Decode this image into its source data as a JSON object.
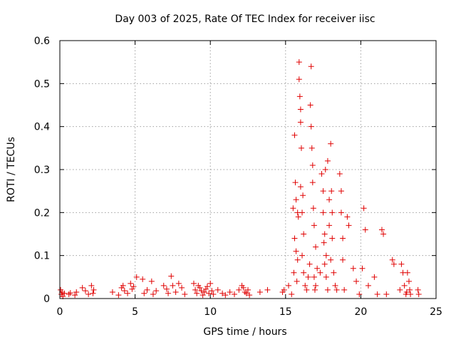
{
  "chart_data": {
    "type": "scatter",
    "title": "Day 003 of 2025, Rate Of TEC Index for receiver iisc",
    "xlabel": "GPS time / hours",
    "ylabel": "ROTI / TECUs",
    "xlim": [
      0,
      25
    ],
    "ylim": [
      0,
      0.6
    ],
    "xticks": [
      "0",
      "5",
      "10",
      "15",
      "20",
      "25"
    ],
    "yticks": [
      "0",
      "0.1",
      "0.2",
      "0.3",
      "0.4",
      "0.5",
      "0.6"
    ],
    "grid": true,
    "marker": "+",
    "colors": {
      "series": "#e00000",
      "grid": "#a0a0a0",
      "axis": "#000000"
    },
    "series": [
      {
        "name": "ROTI",
        "x": [
          0.05,
          0.1,
          0.15,
          0.2,
          0.3,
          0.6,
          0.7,
          1.0,
          1.1,
          1.5,
          1.7,
          1.9,
          2.1,
          2.2,
          2.25,
          3.5,
          3.9,
          4.1,
          4.2,
          4.3,
          4.5,
          4.7,
          4.8,
          4.9,
          5.1,
          5.5,
          5.6,
          5.8,
          6.1,
          6.2,
          6.4,
          6.9,
          7.1,
          7.2,
          7.4,
          7.5,
          7.7,
          7.9,
          8.1,
          8.3,
          8.9,
          9.0,
          9.1,
          9.2,
          9.3,
          9.4,
          9.5,
          9.6,
          9.7,
          9.8,
          9.9,
          10.0,
          10.1,
          10.2,
          10.5,
          10.8,
          11.0,
          11.3,
          11.6,
          11.9,
          12.1,
          12.2,
          12.3,
          12.4,
          12.5,
          12.6,
          13.3,
          13.8,
          14.8,
          14.9,
          15.2,
          15.4,
          15.5,
          15.55,
          15.6,
          15.6,
          15.65,
          15.7,
          15.7,
          15.75,
          15.8,
          15.8,
          15.85,
          15.9,
          15.9,
          15.95,
          16.0,
          16.0,
          16.0,
          16.05,
          16.1,
          16.1,
          16.15,
          16.2,
          16.2,
          16.3,
          16.4,
          16.5,
          16.6,
          16.65,
          16.7,
          16.7,
          16.75,
          16.8,
          16.8,
          16.85,
          16.9,
          16.9,
          16.95,
          17.0,
          17.0,
          17.1,
          17.3,
          17.4,
          17.5,
          17.5,
          17.55,
          17.6,
          17.6,
          17.65,
          17.7,
          17.7,
          17.8,
          17.8,
          17.9,
          17.9,
          18.0,
          18.0,
          18.05,
          18.1,
          18.1,
          18.2,
          18.3,
          18.4,
          18.6,
          18.7,
          18.7,
          18.8,
          18.8,
          18.9,
          19.1,
          19.2,
          19.5,
          19.7,
          19.9,
          20.1,
          20.2,
          20.3,
          20.5,
          20.9,
          21.1,
          21.4,
          21.5,
          21.7,
          22.1,
          22.2,
          22.6,
          22.7,
          22.8,
          22.9,
          23.0,
          23.05,
          23.1,
          23.2,
          23.25,
          23.3,
          23.8,
          23.85
        ],
        "y": [
          0.02,
          0.01,
          0.015,
          0.005,
          0.012,
          0.01,
          0.013,
          0.008,
          0.015,
          0.025,
          0.018,
          0.01,
          0.03,
          0.012,
          0.02,
          0.015,
          0.008,
          0.025,
          0.03,
          0.018,
          0.012,
          0.035,
          0.022,
          0.028,
          0.05,
          0.045,
          0.012,
          0.02,
          0.04,
          0.01,
          0.018,
          0.03,
          0.022,
          0.012,
          0.052,
          0.03,
          0.015,
          0.035,
          0.025,
          0.01,
          0.035,
          0.02,
          0.012,
          0.03,
          0.025,
          0.018,
          0.008,
          0.015,
          0.022,
          0.028,
          0.012,
          0.035,
          0.018,
          0.01,
          0.02,
          0.012,
          0.008,
          0.015,
          0.01,
          0.02,
          0.03,
          0.025,
          0.015,
          0.012,
          0.02,
          0.008,
          0.015,
          0.02,
          0.015,
          0.02,
          0.03,
          0.01,
          0.21,
          0.06,
          0.38,
          0.14,
          0.27,
          0.11,
          0.23,
          0.04,
          0.2,
          0.09,
          0.19,
          0.55,
          0.51,
          0.47,
          0.44,
          0.41,
          0.26,
          0.35,
          0.2,
          0.1,
          0.24,
          0.15,
          0.06,
          0.03,
          0.02,
          0.05,
          0.08,
          0.45,
          0.54,
          0.4,
          0.35,
          0.31,
          0.27,
          0.21,
          0.17,
          0.05,
          0.02,
          0.12,
          0.03,
          0.07,
          0.06,
          0.29,
          0.25,
          0.2,
          0.13,
          0.08,
          0.15,
          0.3,
          0.1,
          0.05,
          0.02,
          0.32,
          0.23,
          0.17,
          0.36,
          0.09,
          0.25,
          0.2,
          0.14,
          0.06,
          0.03,
          0.02,
          0.29,
          0.25,
          0.2,
          0.14,
          0.09,
          0.02,
          0.19,
          0.17,
          0.07,
          0.04,
          0.01,
          0.07,
          0.21,
          0.16,
          0.03,
          0.05,
          0.01,
          0.16,
          0.15,
          0.01,
          0.09,
          0.08,
          0.02,
          0.08,
          0.06,
          0.03,
          0.01,
          0.015,
          0.06,
          0.04,
          0.02,
          0.01,
          0.02,
          0.01
        ]
      }
    ]
  }
}
